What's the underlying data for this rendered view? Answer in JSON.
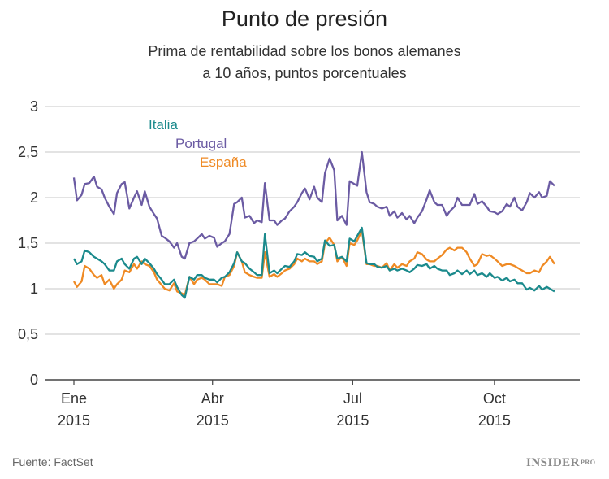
{
  "chart_data": {
    "type": "line",
    "title": "Punto de presión",
    "subtitle_lines": [
      "Prima de rentabilidad sobre los bonos alemanes",
      "a 10 años, puntos porcentuales"
    ],
    "source": "Fuente: FactSet",
    "logo": "INSIDER PRO",
    "ylim": [
      0,
      3
    ],
    "yticks": [
      0,
      0.5,
      1,
      1.5,
      2,
      2.5,
      3
    ],
    "ytick_labels": [
      "0",
      "0,5",
      "1",
      "1,5",
      "2",
      "2,5",
      "3"
    ],
    "xticks": [
      {
        "date": "2015-01-01",
        "month": "Ene",
        "year": "2015"
      },
      {
        "date": "2015-04-01",
        "month": "Abr",
        "year": "2015"
      },
      {
        "date": "2015-07-01",
        "month": "Jul",
        "year": "2015"
      },
      {
        "date": "2015-10-01",
        "month": "Oct",
        "year": "2015"
      }
    ],
    "grid": true,
    "legend": "inline labels top-left",
    "x": [
      "2015-01-01",
      "2015-01-03",
      "2015-01-06",
      "2015-01-08",
      "2015-01-11",
      "2015-01-14",
      "2015-01-16",
      "2015-01-19",
      "2015-01-21",
      "2015-01-24",
      "2015-01-27",
      "2015-01-29",
      "2015-02-01",
      "2015-02-03",
      "2015-02-06",
      "2015-02-09",
      "2015-02-11",
      "2015-02-14",
      "2015-02-16",
      "2015-02-19",
      "2015-02-22",
      "2015-02-24",
      "2015-02-27",
      "2015-03-01",
      "2015-03-04",
      "2015-03-07",
      "2015-03-09",
      "2015-03-12",
      "2015-03-14",
      "2015-03-17",
      "2015-03-20",
      "2015-03-22",
      "2015-03-25",
      "2015-03-27",
      "2015-03-30",
      "2015-04-02",
      "2015-04-04",
      "2015-04-07",
      "2015-04-09",
      "2015-04-12",
      "2015-04-15",
      "2015-04-17",
      "2015-04-20",
      "2015-04-22",
      "2015-04-25",
      "2015-04-28",
      "2015-04-30",
      "2015-05-03",
      "2015-05-05",
      "2015-05-08",
      "2015-05-11",
      "2015-05-13",
      "2015-05-16",
      "2015-05-18",
      "2015-05-21",
      "2015-05-24",
      "2015-05-26",
      "2015-05-29",
      "2015-05-31",
      "2015-06-03",
      "2015-06-06",
      "2015-06-08",
      "2015-06-11",
      "2015-06-13",
      "2015-06-16",
      "2015-06-19",
      "2015-06-21",
      "2015-06-24",
      "2015-06-27",
      "2015-06-29",
      "2015-07-02",
      "2015-07-04",
      "2015-07-07",
      "2015-07-10",
      "2015-07-12",
      "2015-07-15",
      "2015-07-17",
      "2015-07-20",
      "2015-07-23",
      "2015-07-25",
      "2015-07-28",
      "2015-07-30",
      "2015-08-02",
      "2015-08-05",
      "2015-08-07",
      "2015-08-10",
      "2015-08-12",
      "2015-08-15",
      "2015-08-18",
      "2015-08-20",
      "2015-08-23",
      "2015-08-25",
      "2015-08-28",
      "2015-08-31",
      "2015-09-02",
      "2015-09-05",
      "2015-09-07",
      "2015-09-10",
      "2015-09-13",
      "2015-09-15",
      "2015-09-18",
      "2015-09-20",
      "2015-09-23",
      "2015-09-26",
      "2015-09-28",
      "2015-10-01",
      "2015-10-03",
      "2015-10-06",
      "2015-10-09",
      "2015-10-11",
      "2015-10-14",
      "2015-10-16",
      "2015-10-19",
      "2015-10-22",
      "2015-10-24",
      "2015-10-27",
      "2015-10-30",
      "2015-11-01",
      "2015-11-04",
      "2015-11-06",
      "2015-11-09"
    ],
    "series": [
      {
        "name": "Italia",
        "color": "#1b8a8c",
        "values": [
          1.33,
          1.27,
          1.3,
          1.42,
          1.4,
          1.35,
          1.33,
          1.3,
          1.27,
          1.2,
          1.2,
          1.3,
          1.33,
          1.27,
          1.22,
          1.33,
          1.35,
          1.27,
          1.33,
          1.28,
          1.22,
          1.16,
          1.1,
          1.05,
          1.05,
          1.1,
          1.02,
          0.93,
          0.9,
          1.13,
          1.1,
          1.15,
          1.15,
          1.12,
          1.1,
          1.1,
          1.07,
          1.12,
          1.13,
          1.18,
          1.28,
          1.4,
          1.3,
          1.28,
          1.22,
          1.18,
          1.15,
          1.15,
          1.6,
          1.17,
          1.2,
          1.17,
          1.22,
          1.25,
          1.24,
          1.3,
          1.38,
          1.37,
          1.4,
          1.36,
          1.35,
          1.3,
          1.33,
          1.53,
          1.47,
          1.48,
          1.33,
          1.35,
          1.3,
          1.55,
          1.52,
          1.58,
          1.67,
          1.28,
          1.27,
          1.27,
          1.24,
          1.23,
          1.25,
          1.2,
          1.22,
          1.2,
          1.22,
          1.2,
          1.18,
          1.22,
          1.26,
          1.25,
          1.27,
          1.22,
          1.25,
          1.22,
          1.2,
          1.2,
          1.15,
          1.17,
          1.2,
          1.16,
          1.2,
          1.16,
          1.2,
          1.15,
          1.17,
          1.13,
          1.17,
          1.12,
          1.13,
          1.09,
          1.12,
          1.08,
          1.1,
          1.06,
          1.06,
          0.99,
          1.01,
          0.98,
          1.03,
          0.99,
          1.02,
          1.0,
          0.97
        ]
      },
      {
        "name": "Portugal",
        "color": "#6b5ba3",
        "values": [
          2.22,
          1.97,
          2.03,
          2.15,
          2.16,
          2.23,
          2.12,
          2.09,
          2.0,
          1.9,
          1.82,
          2.05,
          2.15,
          2.17,
          1.88,
          2.0,
          2.07,
          1.92,
          2.07,
          1.9,
          1.82,
          1.77,
          1.58,
          1.56,
          1.52,
          1.45,
          1.5,
          1.35,
          1.33,
          1.5,
          1.52,
          1.55,
          1.6,
          1.55,
          1.58,
          1.56,
          1.46,
          1.5,
          1.52,
          1.6,
          1.93,
          1.95,
          2.0,
          1.78,
          1.8,
          1.72,
          1.75,
          1.73,
          2.16,
          1.75,
          1.75,
          1.7,
          1.75,
          1.77,
          1.85,
          1.9,
          1.95,
          2.05,
          2.1,
          1.98,
          2.12,
          2.0,
          1.95,
          2.27,
          2.43,
          2.3,
          1.75,
          1.8,
          1.7,
          2.18,
          2.15,
          2.13,
          2.5,
          2.06,
          1.95,
          1.93,
          1.9,
          1.88,
          1.9,
          1.8,
          1.85,
          1.78,
          1.83,
          1.76,
          1.8,
          1.72,
          1.78,
          1.85,
          1.98,
          2.08,
          1.95,
          1.92,
          1.92,
          1.8,
          1.85,
          1.9,
          2.0,
          1.92,
          1.92,
          1.92,
          2.04,
          1.93,
          1.96,
          1.9,
          1.85,
          1.84,
          1.82,
          1.85,
          1.93,
          1.9,
          2.0,
          1.9,
          1.86,
          1.95,
          2.05,
          2.0,
          2.06,
          2.0,
          2.02,
          2.18,
          2.13
        ]
      },
      {
        "name": "España",
        "color": "#ef8a24",
        "values": [
          1.08,
          1.02,
          1.08,
          1.25,
          1.22,
          1.15,
          1.12,
          1.15,
          1.05,
          1.1,
          1.0,
          1.05,
          1.1,
          1.2,
          1.18,
          1.27,
          1.22,
          1.3,
          1.27,
          1.25,
          1.18,
          1.1,
          1.04,
          1.0,
          0.98,
          1.06,
          0.97,
          0.95,
          0.93,
          1.13,
          1.05,
          1.1,
          1.12,
          1.1,
          1.05,
          1.05,
          1.05,
          1.03,
          1.13,
          1.15,
          1.25,
          1.4,
          1.3,
          1.18,
          1.15,
          1.13,
          1.12,
          1.12,
          1.4,
          1.13,
          1.16,
          1.13,
          1.17,
          1.2,
          1.22,
          1.27,
          1.33,
          1.3,
          1.33,
          1.3,
          1.3,
          1.27,
          1.3,
          1.5,
          1.56,
          1.48,
          1.3,
          1.35,
          1.25,
          1.5,
          1.48,
          1.53,
          1.64,
          1.27,
          1.27,
          1.25,
          1.25,
          1.23,
          1.28,
          1.2,
          1.27,
          1.23,
          1.27,
          1.25,
          1.3,
          1.33,
          1.4,
          1.38,
          1.32,
          1.3,
          1.3,
          1.33,
          1.37,
          1.43,
          1.45,
          1.42,
          1.45,
          1.45,
          1.4,
          1.33,
          1.25,
          1.27,
          1.38,
          1.36,
          1.37,
          1.33,
          1.3,
          1.25,
          1.27,
          1.27,
          1.25,
          1.23,
          1.2,
          1.17,
          1.17,
          1.2,
          1.18,
          1.25,
          1.3,
          1.35,
          1.27
        ]
      }
    ]
  }
}
